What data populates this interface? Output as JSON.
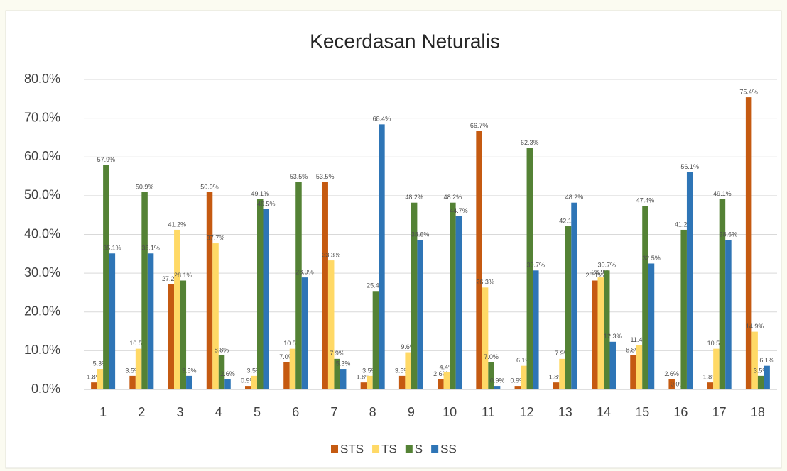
{
  "chart_data": {
    "type": "bar",
    "title": "Kecerdasan Neturalis",
    "categories": [
      "1",
      "2",
      "3",
      "4",
      "5",
      "6",
      "7",
      "8",
      "9",
      "10",
      "11",
      "12",
      "13",
      "14",
      "15",
      "16",
      "17",
      "18"
    ],
    "series": [
      {
        "name": "STS",
        "color": "#c55a11",
        "values": [
          1.8,
          3.5,
          27.2,
          50.9,
          0.9,
          7.0,
          53.5,
          1.8,
          3.5,
          2.6,
          66.7,
          0.9,
          1.8,
          28.1,
          8.8,
          2.6,
          1.8,
          75.4
        ],
        "value_labels": [
          "1.8%",
          "3.5%",
          "27.2%",
          "50.9%",
          "0.9%",
          "7.0%",
          "53.5%",
          "1.8%",
          "3.5%",
          "2.6%",
          "66.7%",
          "0.9%",
          "1.8%",
          "28.1%",
          "8.8%",
          "2.6%",
          "1.8%",
          "75.4%"
        ]
      },
      {
        "name": "TS",
        "color": "#ffd966",
        "values": [
          5.3,
          10.5,
          41.2,
          37.7,
          3.5,
          10.5,
          33.3,
          3.5,
          9.6,
          4.4,
          26.3,
          6.1,
          7.9,
          28.9,
          11.4,
          0.0,
          10.5,
          14.9
        ],
        "value_labels": [
          "5.3%",
          "10.5%",
          "41.2%",
          "37.7%",
          "3.5%",
          "10.5%",
          "33.3%",
          "3.5%",
          "9.6%",
          "4.4%",
          "26.3%",
          "6.1%",
          "7.9%",
          "28.9%",
          "11.4%",
          "0.0%",
          "10.5%",
          "14.9%"
        ]
      },
      {
        "name": "S",
        "color": "#548235",
        "values": [
          57.9,
          50.9,
          28.1,
          8.8,
          49.1,
          53.5,
          7.9,
          25.4,
          48.2,
          48.2,
          7.0,
          62.3,
          42.1,
          30.7,
          47.4,
          41.2,
          49.1,
          3.5
        ],
        "value_labels": [
          "57.9%",
          "50.9%",
          "28.1%",
          "8.8%",
          "49.1%",
          "53.5%",
          "7.9%",
          "25.4%",
          "48.2%",
          "48.2%",
          "7.0%",
          "62.3%",
          "42.1%",
          "30.7%",
          "47.4%",
          "41.2%",
          "49.1%",
          "3.5%"
        ]
      },
      {
        "name": "SS",
        "color": "#2e75b6",
        "values": [
          35.1,
          35.1,
          3.5,
          2.6,
          46.5,
          28.9,
          5.3,
          68.4,
          38.6,
          44.7,
          0.9,
          30.7,
          48.2,
          12.3,
          32.5,
          56.1,
          38.6,
          6.1
        ],
        "value_labels": [
          "35.1%",
          "35.1%",
          "3.5%",
          "2.6%",
          "46.5%",
          "28.9%",
          "5.3%",
          "68.4%",
          "38.6%",
          "44.7%",
          "0.9%",
          "30.7%",
          "48.2%",
          "12.3%",
          "32.5%",
          "56.1%",
          "38.6%",
          "6.1%"
        ]
      }
    ],
    "ylim": [
      0,
      80
    ],
    "yticks": [
      {
        "value": 0,
        "label": "0.0%"
      },
      {
        "value": 10,
        "label": "10.0%"
      },
      {
        "value": 20,
        "label": "20.0%"
      },
      {
        "value": 30,
        "label": "30.0%"
      },
      {
        "value": 40,
        "label": "40.0%"
      },
      {
        "value": 50,
        "label": "50.0%"
      },
      {
        "value": 60,
        "label": "60.0%"
      },
      {
        "value": 70,
        "label": "70.0%"
      },
      {
        "value": 80,
        "label": "80.0%"
      }
    ],
    "grid": true,
    "legend": "bottom"
  }
}
